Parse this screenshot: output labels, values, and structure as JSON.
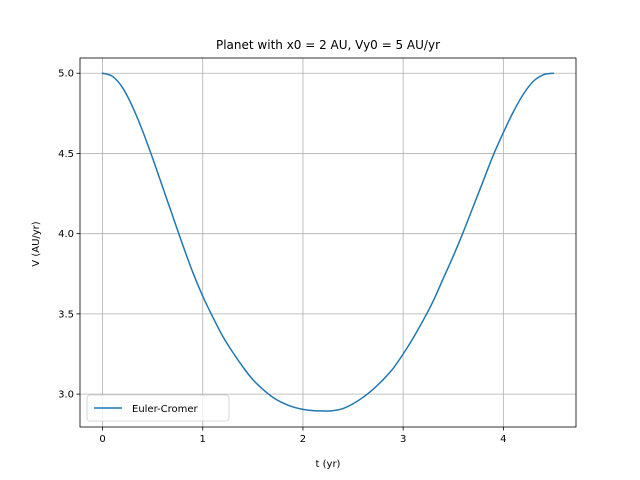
{
  "chart_data": {
    "type": "line",
    "title": "Planet with x0 = 2 AU, Vy0 = 5 AU/yr",
    "xlabel": "t (yr)",
    "ylabel": "V (AU/yr)",
    "xlim": [
      -0.225,
      4.725
    ],
    "ylim": [
      2.795,
      5.095
    ],
    "xticks": [
      0,
      1,
      2,
      3,
      4
    ],
    "xtick_labels": [
      "0",
      "1",
      "2",
      "3",
      "4"
    ],
    "yticks": [
      3.0,
      3.5,
      4.0,
      4.5,
      5.0
    ],
    "ytick_labels": [
      "3.0",
      "3.5",
      "4.0",
      "4.5",
      "5.0"
    ],
    "grid": true,
    "legend_position": "lower-left",
    "series": [
      {
        "name": "Euler-Cromer",
        "color": "#1f77b4",
        "x": [
          0.0,
          0.1,
          0.2,
          0.3,
          0.4,
          0.5,
          0.6,
          0.7,
          0.8,
          0.9,
          1.0,
          1.1,
          1.2,
          1.3,
          1.4,
          1.5,
          1.6,
          1.7,
          1.8,
          1.9,
          2.0,
          2.1,
          2.2,
          2.25,
          2.3,
          2.4,
          2.5,
          2.6,
          2.7,
          2.8,
          2.9,
          3.0,
          3.1,
          3.2,
          3.3,
          3.4,
          3.5,
          3.6,
          3.7,
          3.8,
          3.9,
          4.0,
          4.1,
          4.2,
          4.3,
          4.4,
          4.5
        ],
        "y": [
          5.0,
          4.98,
          4.91,
          4.79,
          4.64,
          4.47,
          4.29,
          4.11,
          3.93,
          3.76,
          3.61,
          3.48,
          3.36,
          3.26,
          3.17,
          3.09,
          3.03,
          2.98,
          2.945,
          2.92,
          2.905,
          2.897,
          2.895,
          2.895,
          2.897,
          2.91,
          2.94,
          2.98,
          3.03,
          3.09,
          3.16,
          3.25,
          3.35,
          3.46,
          3.58,
          3.72,
          3.86,
          4.01,
          4.17,
          4.33,
          4.49,
          4.63,
          4.76,
          4.87,
          4.95,
          4.99,
          5.0
        ]
      }
    ]
  }
}
